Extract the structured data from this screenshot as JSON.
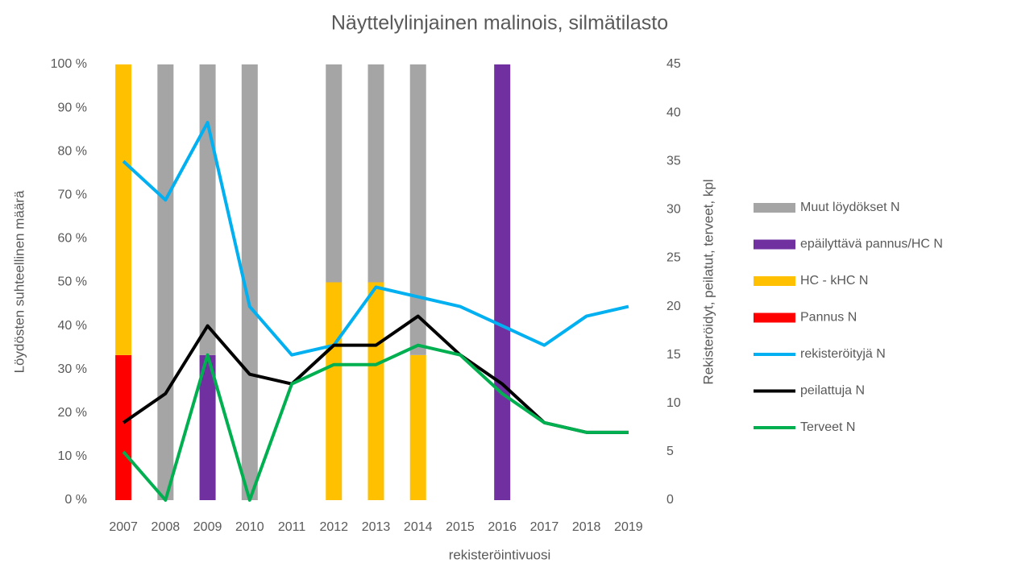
{
  "chart_data": {
    "type": "combo",
    "title": "Näyttelylinjainen malinois, silmätilasto",
    "x_label": "rekisteröintivuosi",
    "y_label": "Löydösten suhteellinen määrä",
    "y2_label": "Rekisteröidyt, peilatut, terveet, kpl",
    "stacked": true,
    "grid": false,
    "legend": "right",
    "categories": [
      "2007",
      "2008",
      "2009",
      "2010",
      "2011",
      "2012",
      "2013",
      "2014",
      "2015",
      "2016",
      "2017",
      "2018",
      "2019"
    ],
    "ylim": [
      0,
      100
    ],
    "yticks": [
      {
        "value": 0,
        "label": "0 %"
      },
      {
        "value": 10,
        "label": "10 %"
      },
      {
        "value": 20,
        "label": "20 %"
      },
      {
        "value": 30,
        "label": "30 %"
      },
      {
        "value": 40,
        "label": "40 %"
      },
      {
        "value": 50,
        "label": "50 %"
      },
      {
        "value": 60,
        "label": "60 %"
      },
      {
        "value": 70,
        "label": "70 %"
      },
      {
        "value": 80,
        "label": "80 %"
      },
      {
        "value": 90,
        "label": "90 %"
      },
      {
        "value": 100,
        "label": "100 %"
      }
    ],
    "y2lim": [
      0,
      45
    ],
    "y2ticks": [
      0,
      5,
      10,
      15,
      20,
      25,
      30,
      35,
      40,
      45
    ],
    "series": [
      {
        "name": "Pannus N",
        "type": "bar",
        "axis": "y",
        "color": "#ff0000",
        "values": [
          33.3,
          0,
          0,
          0,
          0,
          0,
          0,
          0,
          0,
          0,
          0,
          0,
          0
        ]
      },
      {
        "name": "HC - kHC N",
        "type": "bar",
        "axis": "y",
        "color": "#ffc000",
        "values": [
          66.7,
          0,
          0,
          0,
          0,
          50,
          50,
          33.3,
          0,
          0,
          0,
          0,
          0
        ]
      },
      {
        "name": "epäilyttävä pannus/HC N",
        "type": "bar",
        "axis": "y",
        "color": "#7030a0",
        "values": [
          0,
          0,
          33.3,
          0,
          0,
          0,
          0,
          0,
          0,
          100,
          0,
          0,
          0
        ]
      },
      {
        "name": "Muut löydökset N",
        "type": "bar",
        "axis": "y",
        "color": "#a5a5a5",
        "values": [
          0,
          100,
          66.7,
          100,
          0,
          50,
          50,
          66.7,
          0,
          0,
          0,
          0,
          0
        ]
      },
      {
        "name": "rekisteröityjä N",
        "type": "line",
        "axis": "y2",
        "color": "#00b0f0",
        "values": [
          35,
          31,
          39,
          20,
          15,
          16,
          22,
          21,
          20,
          18,
          16,
          19,
          20
        ]
      },
      {
        "name": "peilattuja N",
        "type": "line",
        "axis": "y2",
        "color": "#000000",
        "values": [
          8,
          11,
          18,
          13,
          12,
          16,
          16,
          19,
          15,
          12,
          8,
          7,
          7
        ]
      },
      {
        "name": "Terveet N",
        "type": "line",
        "axis": "y2",
        "color": "#00b050",
        "values": [
          5,
          0,
          15,
          0,
          12,
          14,
          14,
          16,
          15,
          11,
          8,
          7,
          7
        ]
      }
    ]
  }
}
